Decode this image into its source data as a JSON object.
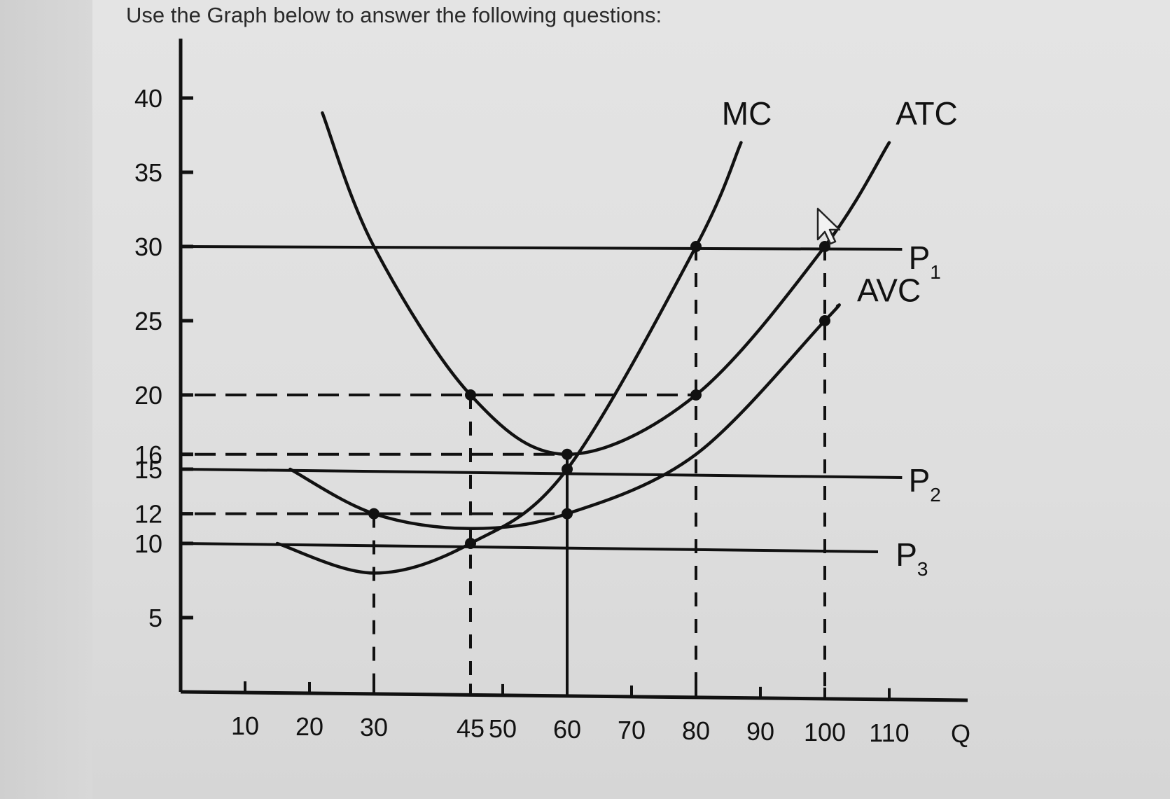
{
  "heading": "Use the Graph below to answer the following questions:",
  "chart_data": {
    "type": "line",
    "xlabel": "Q",
    "ylabel": "",
    "x_ticks": [
      10,
      20,
      30,
      45,
      50,
      60,
      70,
      80,
      90,
      100,
      110
    ],
    "y_ticks": [
      5,
      10,
      12,
      15,
      16,
      20,
      25,
      30,
      35,
      40
    ],
    "xlim": [
      0,
      120
    ],
    "ylim": [
      0,
      44
    ],
    "grid": false,
    "series": [
      {
        "name": "MC",
        "x": [
          15,
          30,
          45,
          60,
          80,
          87
        ],
        "y": [
          10,
          8,
          10,
          15,
          30,
          37
        ]
      },
      {
        "name": "ATC",
        "x": [
          22,
          30,
          45,
          60,
          80,
          100,
          110
        ],
        "y": [
          39,
          30,
          20,
          16,
          20,
          30,
          37
        ]
      },
      {
        "name": "AVC",
        "x": [
          17,
          30,
          45,
          60,
          80,
          100,
          102
        ],
        "y": [
          15,
          12,
          11,
          12,
          16,
          25,
          26
        ]
      }
    ],
    "price_lines": [
      {
        "name": "P",
        "subscript": "1",
        "y": 30
      },
      {
        "name": "P",
        "subscript": "2",
        "y": 15
      },
      {
        "name": "P",
        "subscript": "3",
        "y": 10
      }
    ],
    "marked_points": [
      {
        "x": 30,
        "y": 12
      },
      {
        "x": 45,
        "y": 20
      },
      {
        "x": 45,
        "y": 10
      },
      {
        "x": 60,
        "y": 16
      },
      {
        "x": 60,
        "y": 15
      },
      {
        "x": 60,
        "y": 12
      },
      {
        "x": 80,
        "y": 30
      },
      {
        "x": 80,
        "y": 20
      },
      {
        "x": 100,
        "y": 30
      },
      {
        "x": 100,
        "y": 25
      }
    ],
    "horizontal_dashes": [
      {
        "y": 20,
        "x_to": 80
      },
      {
        "y": 16,
        "x_to": 60
      },
      {
        "y": 12,
        "x_to": 60
      }
    ],
    "vertical_guides": [
      {
        "x": 30,
        "y_from": 12,
        "style": "dashed"
      },
      {
        "x": 45,
        "y_from": 20,
        "style": "dashed"
      },
      {
        "x": 60,
        "y_from": 16,
        "style": "solid"
      },
      {
        "x": 80,
        "y_from": 30,
        "style": "dashed"
      },
      {
        "x": 100,
        "y_from": 30,
        "style": "dashed"
      }
    ]
  }
}
